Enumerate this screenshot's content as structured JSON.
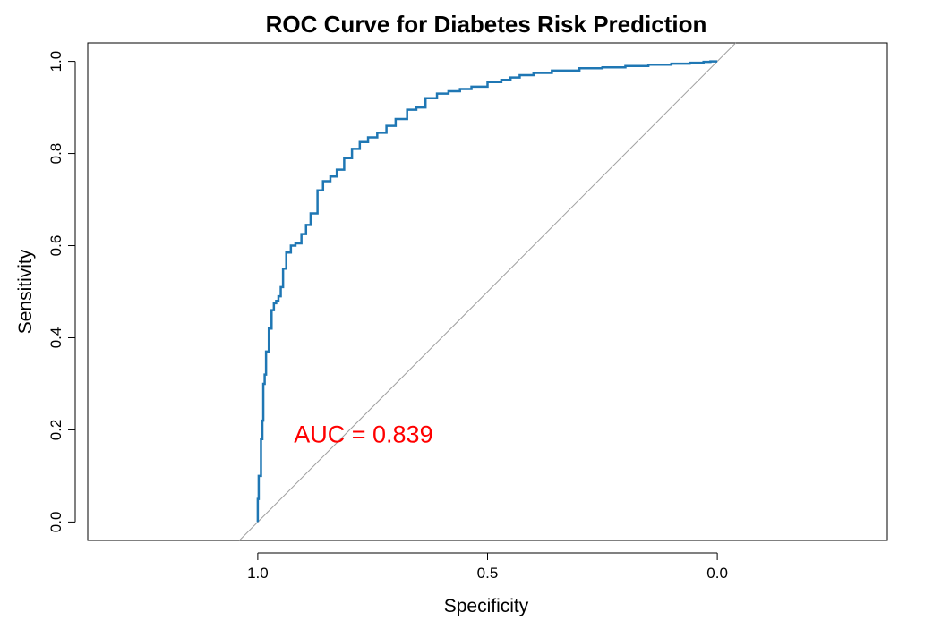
{
  "chart_data": {
    "type": "line",
    "title": "ROC Curve for Diabetes Risk Prediction",
    "xlabel": "Specificity",
    "ylabel": "Sensitivity",
    "x_reversed": true,
    "xlim": [
      1.37,
      -0.37
    ],
    "ylim": [
      -0.04,
      1.04
    ],
    "x_ticks": [
      1.0,
      0.5,
      0.0
    ],
    "x_tick_labels": [
      "1.0",
      "0.5",
      "0.0"
    ],
    "y_ticks": [
      0.0,
      0.2,
      0.4,
      0.6,
      0.8,
      1.0
    ],
    "y_tick_labels": [
      "0.0",
      "0.2",
      "0.4",
      "0.6",
      "0.8",
      "1.0"
    ],
    "grid": false,
    "reference_line": {
      "from": [
        1.0,
        0.0
      ],
      "to": [
        0.0,
        1.0
      ],
      "color": "#a0a0a0"
    },
    "annotation": {
      "text": "AUC = 0.839",
      "x": 0.77,
      "y": 0.19,
      "color": "#ff0000"
    },
    "series": [
      {
        "color": "#1f77b4",
        "specificity": [
          1.0,
          0.998,
          0.993,
          0.99,
          0.988,
          0.985,
          0.982,
          0.976,
          0.97,
          0.965,
          0.96,
          0.955,
          0.95,
          0.945,
          0.938,
          0.928,
          0.918,
          0.905,
          0.895,
          0.885,
          0.87,
          0.858,
          0.842,
          0.828,
          0.812,
          0.795,
          0.778,
          0.76,
          0.74,
          0.72,
          0.7,
          0.675,
          0.655,
          0.635,
          0.61,
          0.585,
          0.56,
          0.535,
          0.5,
          0.47,
          0.45,
          0.43,
          0.4,
          0.36,
          0.3,
          0.25,
          0.2,
          0.15,
          0.1,
          0.06,
          0.03,
          0.015,
          0.0
        ],
        "sensitivity": [
          0.0,
          0.05,
          0.1,
          0.18,
          0.22,
          0.3,
          0.32,
          0.37,
          0.42,
          0.46,
          0.475,
          0.48,
          0.49,
          0.51,
          0.55,
          0.585,
          0.6,
          0.605,
          0.625,
          0.645,
          0.67,
          0.72,
          0.74,
          0.75,
          0.765,
          0.79,
          0.81,
          0.825,
          0.835,
          0.845,
          0.86,
          0.875,
          0.895,
          0.9,
          0.92,
          0.93,
          0.935,
          0.94,
          0.945,
          0.955,
          0.96,
          0.965,
          0.97,
          0.975,
          0.98,
          0.985,
          0.987,
          0.99,
          0.993,
          0.995,
          0.997,
          0.999,
          1.0
        ]
      }
    ]
  }
}
